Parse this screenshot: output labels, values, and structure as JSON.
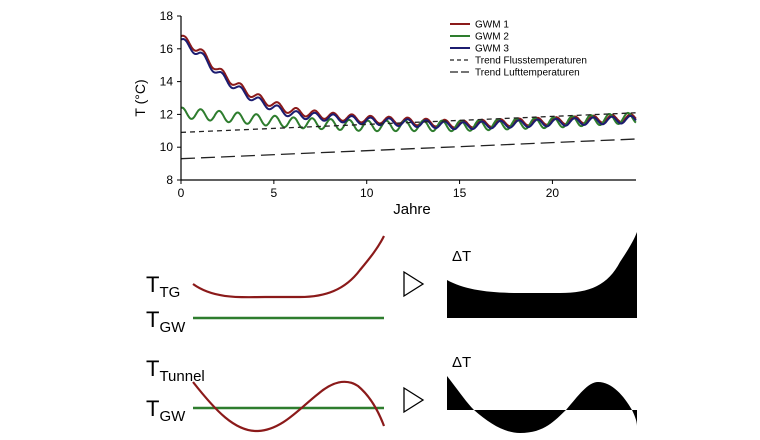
{
  "chart_data": [
    {
      "type": "line",
      "title": "",
      "xlabel": "Jahre",
      "ylabel": "T (°C)",
      "xlim": [
        0,
        24.5
      ],
      "ylim": [
        8,
        18
      ],
      "xticks": [
        "0",
        "5",
        "10",
        "15",
        "20"
      ],
      "yticks": [
        "8",
        "10",
        "12",
        "14",
        "16",
        "18"
      ],
      "grid": false,
      "legend_position": "top-right",
      "series": [
        {
          "name": "GWM 1",
          "color": "#8b1a1a",
          "style": "solid",
          "x": [
            0,
            1,
            2,
            3,
            4,
            5,
            6,
            8,
            10,
            12,
            15,
            20,
            24.5
          ],
          "y": [
            16.7,
            15.9,
            14.7,
            13.8,
            13.1,
            12.6,
            12.2,
            11.9,
            11.7,
            11.6,
            11.4,
            11.6,
            11.8
          ]
        },
        {
          "name": "GWM 2",
          "color": "#2e7d2e",
          "style": "solid",
          "x": [
            0,
            2,
            4,
            6,
            8,
            10,
            12,
            15,
            20,
            24.5
          ],
          "y": [
            12.1,
            11.9,
            11.7,
            11.5,
            11.4,
            11.3,
            11.3,
            11.3,
            11.5,
            11.8
          ]
        },
        {
          "name": "GWM 3",
          "color": "#1c1c70",
          "style": "solid",
          "x": [
            0,
            1,
            2,
            3,
            4,
            5,
            6,
            8,
            10,
            12,
            15,
            20,
            24.5
          ],
          "y": [
            16.5,
            15.7,
            14.5,
            13.6,
            12.9,
            12.4,
            12.0,
            11.8,
            11.6,
            11.5,
            11.3,
            11.5,
            11.7
          ]
        },
        {
          "name": "Trend Flusstemperaturen",
          "color": "#222222",
          "style": "dashed",
          "x": [
            0,
            24.5
          ],
          "y": [
            10.9,
            12.1
          ]
        },
        {
          "name": "Trend Lufttemperaturen",
          "color": "#222222",
          "style": "longdash",
          "x": [
            0,
            24.5
          ],
          "y": [
            9.3,
            10.5
          ]
        }
      ]
    },
    {
      "type": "diagram",
      "rows": [
        {
          "label_main": "T",
          "label_sub": "TG",
          "label2_main": "T",
          "label2_sub": "GW",
          "delta_label": "ΔT"
        },
        {
          "label_main": "T",
          "label_sub": "Tunnel",
          "label2_main": "T",
          "label2_sub": "GW",
          "delta_label": "ΔT"
        }
      ]
    }
  ],
  "colors": {
    "red_curve": "#8b1a1a",
    "green_curve": "#2e7d2e",
    "axis": "#000000"
  },
  "icons": {
    "arrow": "triangle-right-outline-icon"
  }
}
